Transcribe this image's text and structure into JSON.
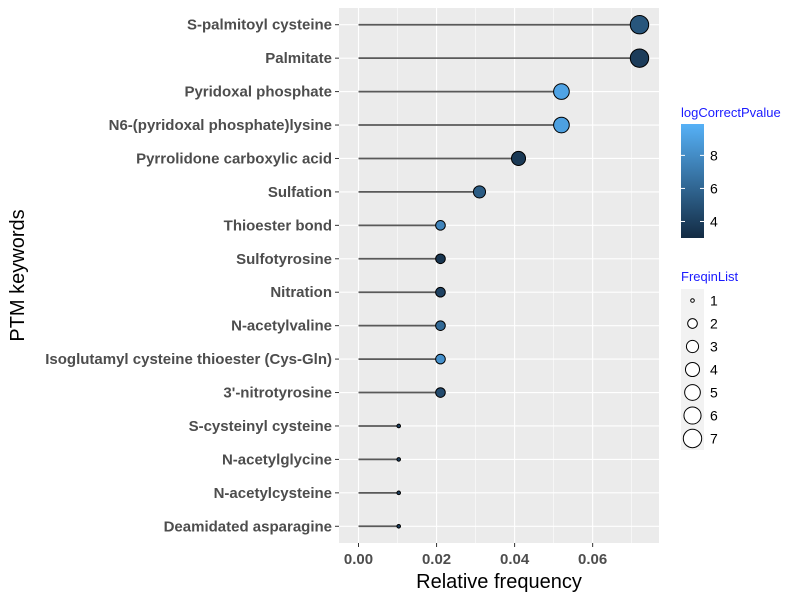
{
  "chart_data": {
    "type": "lollipop",
    "xlabel": "Relative frequency",
    "ylabel": "PTM keywords",
    "xlim": [
      -0.005,
      0.077
    ],
    "x_ticks": [
      0,
      0.02,
      0.04,
      0.06
    ],
    "x_tick_labels": [
      "0.00",
      "0.02",
      "0.04",
      "0.06"
    ],
    "grid": true,
    "categories": [
      "S-palmitoyl cysteine",
      "Palmitate",
      "Pyridoxal phosphate",
      "N6-(pyridoxal phosphate)lysine",
      "Pyrrolidone carboxylic acid",
      "Sulfation",
      "Thioester bond",
      "Sulfotyrosine",
      "Nitration",
      "N-acetylvaline",
      "Isoglutamyl cysteine thioester (Cys-Gln)",
      "3'-nitrotyrosine",
      "S-cysteinyl cysteine",
      "N-acetylglycine",
      "N-acetylcysteine",
      "Deamidated asparagine"
    ],
    "relative_frequency": [
      0.072,
      0.072,
      0.052,
      0.052,
      0.041,
      0.031,
      0.021,
      0.021,
      0.021,
      0.021,
      0.021,
      0.021,
      0.0103,
      0.0103,
      0.0103,
      0.0103
    ],
    "freq_in_list": [
      7,
      7,
      5,
      5,
      4,
      3,
      2,
      2,
      2,
      2,
      2,
      2,
      1,
      1,
      1,
      1
    ],
    "log_correct_pvalue": [
      5.2,
      3.9,
      9.2,
      9.0,
      3.7,
      5.5,
      7.6,
      3.5,
      4.2,
      6.2,
      8.2,
      4.6,
      4.0,
      4.0,
      4.0,
      4.0
    ],
    "color_scale": {
      "title": "logCorrectPvalue",
      "low_color": "#132B43",
      "high_color": "#56B1F7",
      "limits": [
        3.0,
        9.9
      ],
      "breaks": [
        4,
        6,
        8
      ],
      "break_labels": [
        "4",
        "6",
        "8"
      ]
    },
    "size_scale": {
      "title": "FreqinList",
      "breaks": [
        1,
        2,
        3,
        4,
        5,
        6,
        7
      ],
      "break_labels": [
        "1",
        "2",
        "3",
        "4",
        "5",
        "6",
        "7"
      ]
    },
    "colors": {
      "panel_background": "#EBEBEB",
      "grid_line": "#FFFFFF",
      "segment": "#595959",
      "axis_text": "#4D4D4D",
      "legend_title": "#1A1AFF"
    }
  }
}
